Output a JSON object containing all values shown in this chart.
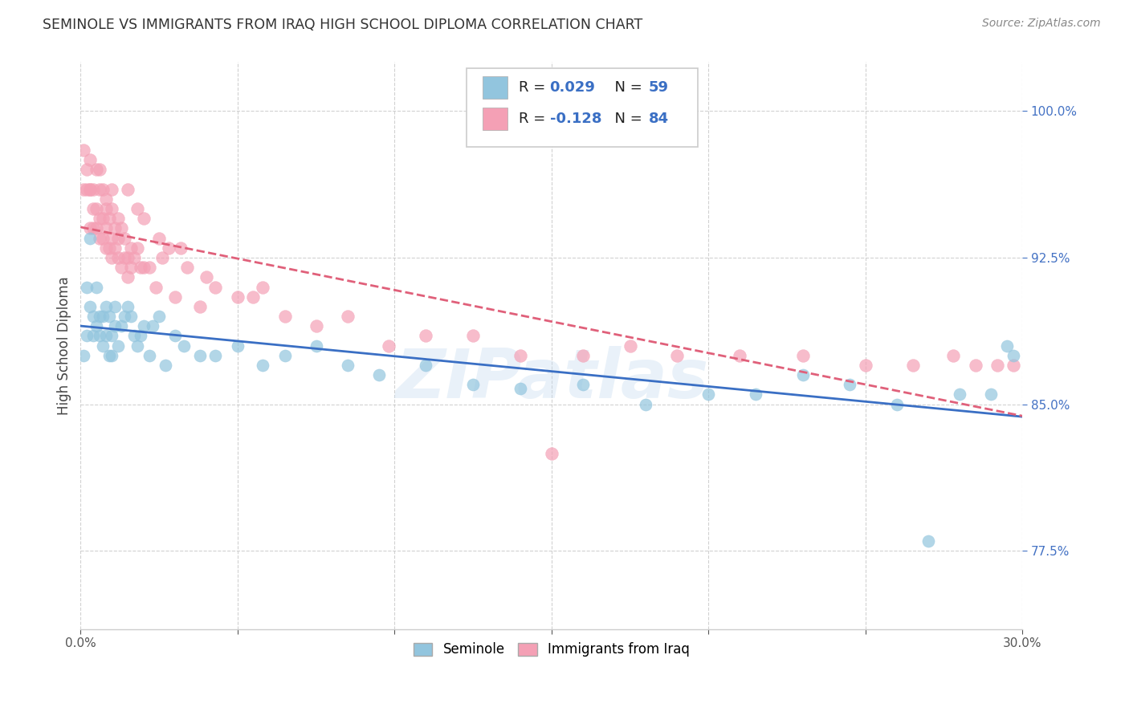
{
  "title": "SEMINOLE VS IMMIGRANTS FROM IRAQ HIGH SCHOOL DIPLOMA CORRELATION CHART",
  "source": "Source: ZipAtlas.com",
  "ylabel": "High School Diploma",
  "ytick_values": [
    0.775,
    0.85,
    0.925,
    1.0
  ],
  "xlim": [
    0.0,
    0.3
  ],
  "ylim": [
    0.735,
    1.025
  ],
  "blue_color": "#92c5de",
  "pink_color": "#f4a0b5",
  "trend_blue": "#3a6fc4",
  "trend_pink": "#e0607a",
  "watermark": "ZIPatlas",
  "seminole_x": [
    0.001,
    0.002,
    0.002,
    0.003,
    0.003,
    0.004,
    0.004,
    0.005,
    0.005,
    0.006,
    0.006,
    0.007,
    0.007,
    0.008,
    0.008,
    0.009,
    0.009,
    0.01,
    0.01,
    0.011,
    0.011,
    0.012,
    0.013,
    0.014,
    0.015,
    0.016,
    0.017,
    0.018,
    0.019,
    0.02,
    0.022,
    0.023,
    0.025,
    0.027,
    0.03,
    0.033,
    0.038,
    0.043,
    0.05,
    0.058,
    0.065,
    0.075,
    0.085,
    0.095,
    0.11,
    0.125,
    0.14,
    0.16,
    0.18,
    0.2,
    0.215,
    0.23,
    0.245,
    0.26,
    0.27,
    0.28,
    0.29,
    0.295,
    0.297
  ],
  "seminole_y": [
    0.875,
    0.885,
    0.91,
    0.9,
    0.935,
    0.885,
    0.895,
    0.89,
    0.91,
    0.885,
    0.895,
    0.88,
    0.895,
    0.885,
    0.9,
    0.875,
    0.895,
    0.885,
    0.875,
    0.89,
    0.9,
    0.88,
    0.89,
    0.895,
    0.9,
    0.895,
    0.885,
    0.88,
    0.885,
    0.89,
    0.875,
    0.89,
    0.895,
    0.87,
    0.885,
    0.88,
    0.875,
    0.875,
    0.88,
    0.87,
    0.875,
    0.88,
    0.87,
    0.865,
    0.87,
    0.86,
    0.858,
    0.86,
    0.85,
    0.855,
    0.855,
    0.865,
    0.86,
    0.85,
    0.78,
    0.855,
    0.855,
    0.88,
    0.875
  ],
  "iraq_x": [
    0.001,
    0.001,
    0.002,
    0.002,
    0.003,
    0.003,
    0.003,
    0.004,
    0.004,
    0.004,
    0.005,
    0.005,
    0.005,
    0.006,
    0.006,
    0.006,
    0.007,
    0.007,
    0.007,
    0.008,
    0.008,
    0.008,
    0.009,
    0.009,
    0.01,
    0.01,
    0.01,
    0.011,
    0.011,
    0.012,
    0.012,
    0.013,
    0.013,
    0.014,
    0.014,
    0.015,
    0.015,
    0.016,
    0.016,
    0.017,
    0.018,
    0.019,
    0.02,
    0.022,
    0.024,
    0.026,
    0.03,
    0.034,
    0.038,
    0.043,
    0.05,
    0.058,
    0.065,
    0.075,
    0.085,
    0.098,
    0.11,
    0.125,
    0.14,
    0.16,
    0.175,
    0.19,
    0.21,
    0.23,
    0.25,
    0.265,
    0.278,
    0.285,
    0.292,
    0.297,
    0.003,
    0.006,
    0.008,
    0.01,
    0.012,
    0.015,
    0.018,
    0.02,
    0.025,
    0.028,
    0.032,
    0.04,
    0.055,
    0.15
  ],
  "iraq_y": [
    0.98,
    0.96,
    0.96,
    0.97,
    0.96,
    0.94,
    0.96,
    0.96,
    0.95,
    0.94,
    0.97,
    0.95,
    0.94,
    0.96,
    0.945,
    0.935,
    0.96,
    0.945,
    0.935,
    0.95,
    0.94,
    0.93,
    0.945,
    0.93,
    0.95,
    0.935,
    0.925,
    0.94,
    0.93,
    0.935,
    0.925,
    0.94,
    0.92,
    0.935,
    0.925,
    0.925,
    0.915,
    0.93,
    0.92,
    0.925,
    0.93,
    0.92,
    0.92,
    0.92,
    0.91,
    0.925,
    0.905,
    0.92,
    0.9,
    0.91,
    0.905,
    0.91,
    0.895,
    0.89,
    0.895,
    0.88,
    0.885,
    0.885,
    0.875,
    0.875,
    0.88,
    0.875,
    0.875,
    0.875,
    0.87,
    0.87,
    0.875,
    0.87,
    0.87,
    0.87,
    0.975,
    0.97,
    0.955,
    0.96,
    0.945,
    0.96,
    0.95,
    0.945,
    0.935,
    0.93,
    0.93,
    0.915,
    0.905,
    0.825
  ]
}
